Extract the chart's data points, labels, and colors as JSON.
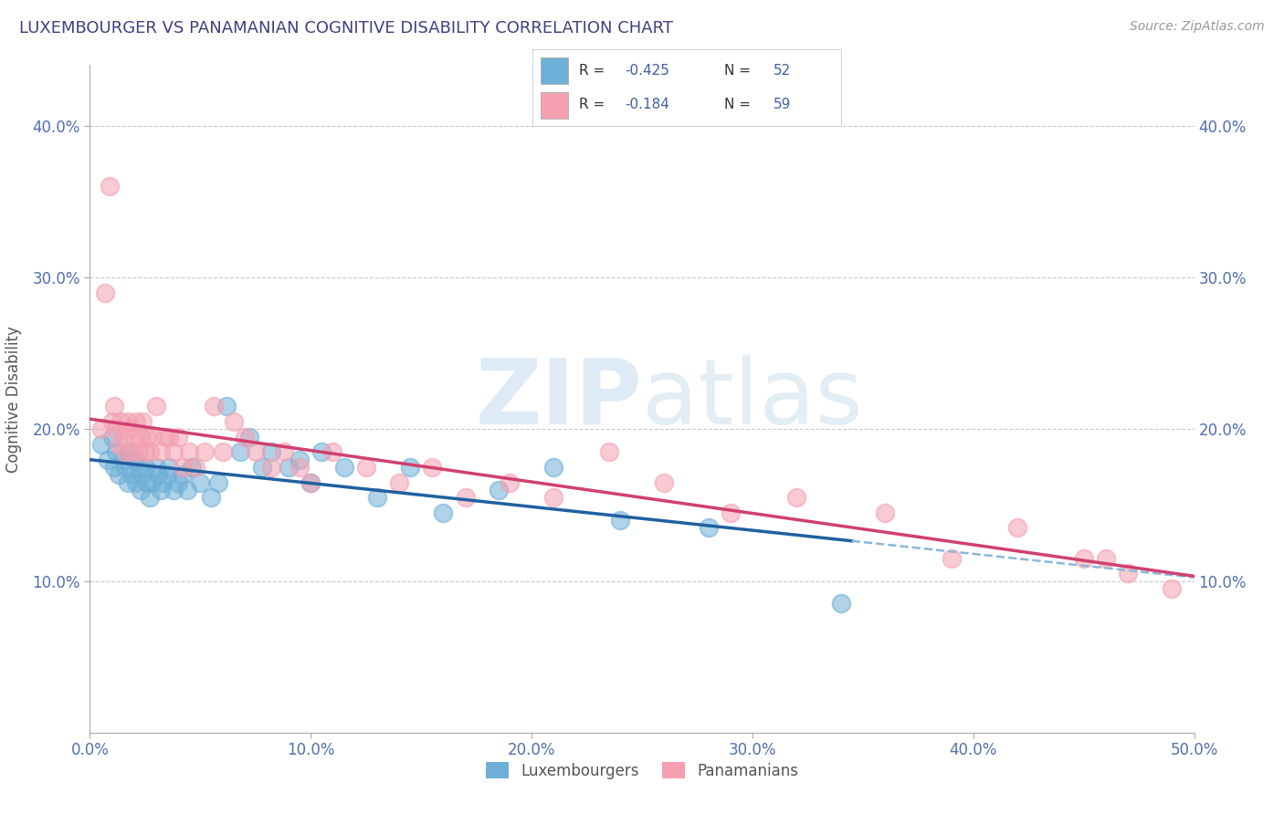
{
  "title": "LUXEMBOURGER VS PANAMANIAN COGNITIVE DISABILITY CORRELATION CHART",
  "source": "Source: ZipAtlas.com",
  "ylabel": "Cognitive Disability",
  "watermark_zip": "ZIP",
  "watermark_atlas": "atlas",
  "xlim": [
    0.0,
    0.5
  ],
  "ylim": [
    0.0,
    0.44
  ],
  "xticks": [
    0.0,
    0.1,
    0.2,
    0.3,
    0.4,
    0.5
  ],
  "yticks": [
    0.1,
    0.2,
    0.3,
    0.4
  ],
  "ytick_labels": [
    "10.0%",
    "20.0%",
    "30.0%",
    "40.0%"
  ],
  "xtick_labels": [
    "0.0%",
    "10.0%",
    "20.0%",
    "30.0%",
    "40.0%",
    "50.0%"
  ],
  "legend_label1": "Luxembourgers",
  "legend_label2": "Panamanians",
  "R1": -0.425,
  "N1": 52,
  "R2": -0.184,
  "N2": 59,
  "color_blue": "#6dafd7",
  "color_pink": "#f4a0b0",
  "line_blue": "#2060a0",
  "line_pink": "#d04070",
  "line_blue_dash": "#8ab8d8",
  "title_color": "#404080",
  "axis_color": "#4060a0",
  "tick_color": "#5070b0",
  "background_color": "#ffffff",
  "lux_x": [
    0.005,
    0.008,
    0.01,
    0.011,
    0.012,
    0.013,
    0.015,
    0.016,
    0.017,
    0.018,
    0.019,
    0.02,
    0.021,
    0.022,
    0.023,
    0.024,
    0.025,
    0.026,
    0.027,
    0.028,
    0.03,
    0.031,
    0.032,
    0.033,
    0.035,
    0.036,
    0.038,
    0.04,
    0.042,
    0.044,
    0.046,
    0.05,
    0.055,
    0.058,
    0.062,
    0.068,
    0.072,
    0.078,
    0.082,
    0.09,
    0.095,
    0.1,
    0.105,
    0.115,
    0.13,
    0.145,
    0.16,
    0.185,
    0.21,
    0.24,
    0.28,
    0.34
  ],
  "lux_y": [
    0.19,
    0.18,
    0.195,
    0.175,
    0.185,
    0.17,
    0.18,
    0.175,
    0.165,
    0.185,
    0.17,
    0.18,
    0.165,
    0.175,
    0.16,
    0.17,
    0.175,
    0.165,
    0.155,
    0.165,
    0.175,
    0.17,
    0.16,
    0.165,
    0.17,
    0.175,
    0.16,
    0.165,
    0.17,
    0.16,
    0.175,
    0.165,
    0.155,
    0.165,
    0.215,
    0.185,
    0.195,
    0.175,
    0.185,
    0.175,
    0.18,
    0.165,
    0.185,
    0.175,
    0.155,
    0.175,
    0.145,
    0.16,
    0.175,
    0.14,
    0.135,
    0.085
  ],
  "pan_x": [
    0.005,
    0.007,
    0.009,
    0.01,
    0.011,
    0.012,
    0.013,
    0.014,
    0.015,
    0.016,
    0.017,
    0.018,
    0.019,
    0.02,
    0.021,
    0.022,
    0.023,
    0.024,
    0.025,
    0.026,
    0.027,
    0.028,
    0.03,
    0.032,
    0.034,
    0.036,
    0.038,
    0.04,
    0.042,
    0.045,
    0.048,
    0.052,
    0.056,
    0.06,
    0.065,
    0.07,
    0.075,
    0.082,
    0.088,
    0.095,
    0.1,
    0.11,
    0.125,
    0.14,
    0.155,
    0.17,
    0.19,
    0.21,
    0.235,
    0.26,
    0.29,
    0.32,
    0.36,
    0.39,
    0.42,
    0.45,
    0.46,
    0.47,
    0.49
  ],
  "pan_y": [
    0.2,
    0.29,
    0.36,
    0.205,
    0.215,
    0.2,
    0.19,
    0.205,
    0.195,
    0.185,
    0.205,
    0.2,
    0.185,
    0.195,
    0.205,
    0.185,
    0.195,
    0.205,
    0.185,
    0.195,
    0.185,
    0.195,
    0.215,
    0.185,
    0.195,
    0.195,
    0.185,
    0.195,
    0.175,
    0.185,
    0.175,
    0.185,
    0.215,
    0.185,
    0.205,
    0.195,
    0.185,
    0.175,
    0.185,
    0.175,
    0.165,
    0.185,
    0.175,
    0.165,
    0.175,
    0.155,
    0.165,
    0.155,
    0.185,
    0.165,
    0.145,
    0.155,
    0.145,
    0.115,
    0.135,
    0.115,
    0.115,
    0.105,
    0.095
  ],
  "lux_line_x0": 0.0,
  "lux_line_x1": 0.345,
  "pan_line_x0": 0.0,
  "pan_line_x1": 0.5
}
